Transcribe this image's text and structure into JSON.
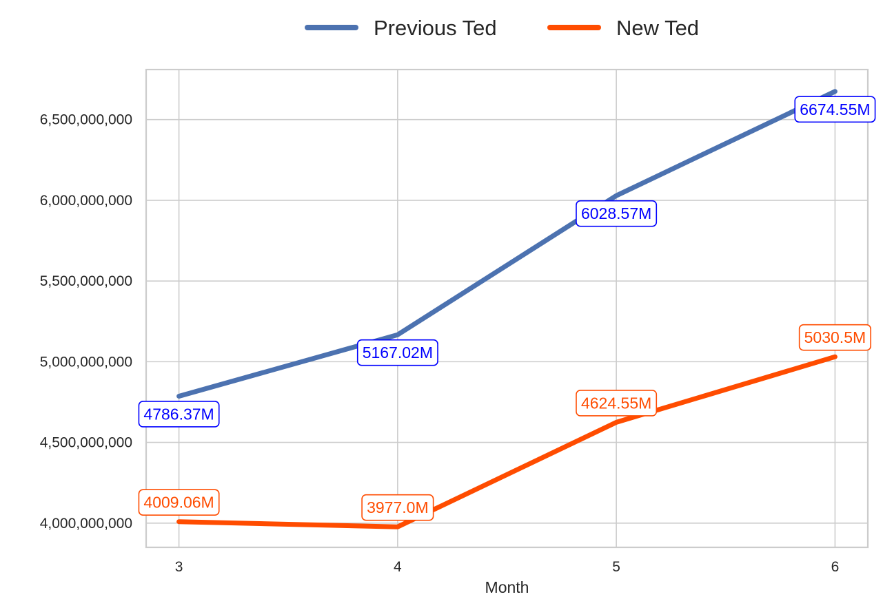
{
  "chart_data": {
    "type": "line",
    "title": "",
    "xlabel": "Month",
    "ylabel": "",
    "x": [
      3,
      4,
      5,
      6
    ],
    "x_tick_labels": [
      "3",
      "4",
      "5",
      "6"
    ],
    "y_ticks": [
      4000000000,
      4500000000,
      5000000000,
      5500000000,
      6000000000,
      6500000000
    ],
    "y_tick_labels": [
      "4,000,000,000",
      "4,500,000,000",
      "5,000,000,000",
      "5,500,000,000",
      "6,000,000,000",
      "6,500,000,000"
    ],
    "xlim": [
      2.85,
      6.15
    ],
    "ylim": [
      3850000000,
      6810000000
    ],
    "grid": true,
    "legend_position": "top-center",
    "series": [
      {
        "name": "Previous Ted",
        "color": "#4c72b0",
        "label_color": "#0000ff",
        "values": [
          4786370000,
          5167020000,
          6028570000,
          6674550000
        ],
        "data_labels": [
          "4786.37M",
          "5167.02M",
          "6028.57M",
          "6674.55M"
        ]
      },
      {
        "name": "New Ted",
        "color": "#ff4c00",
        "label_color": "#ff4c00",
        "values": [
          4009060000,
          3977000000,
          4624550000,
          5030500000
        ],
        "data_labels": [
          "4009.06M",
          "3977.0M",
          "4624.55M",
          "5030.5M"
        ]
      }
    ]
  }
}
